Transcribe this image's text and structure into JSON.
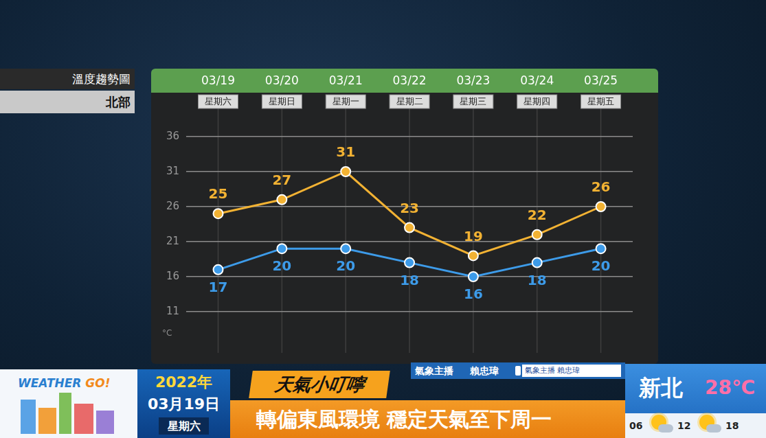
{
  "chart_data": {
    "type": "line",
    "title": "溫度趨勢圖",
    "subtitle": "北部",
    "categories": [
      "03/19",
      "03/20",
      "03/21",
      "03/22",
      "03/23",
      "03/24",
      "03/25"
    ],
    "weekdays": [
      "星期六",
      "星期日",
      "星期一",
      "星期二",
      "星期三",
      "星期四",
      "星期五"
    ],
    "series": [
      {
        "color": "#f2b233",
        "values": [
          25,
          27,
          31,
          23,
          19,
          22,
          26
        ]
      },
      {
        "color": "#3d9be9",
        "values": [
          17,
          20,
          20,
          18,
          16,
          18,
          20
        ]
      }
    ],
    "ylabel": "°C",
    "ylim": [
      11,
      36
    ],
    "yticks": [
      11,
      16,
      21,
      26,
      31,
      36
    ],
    "grid": true,
    "data_labels": true,
    "marker": "circle"
  },
  "page": {
    "logo": "WEATHER GO!",
    "date": {
      "year": "2022年",
      "day": "03月19日",
      "weekday": "星期六"
    },
    "tip_label": "天氣小叮嚀",
    "headline": "轉偏東風環境 穩定天氣至下周一",
    "anchor": {
      "role": "氣象主播",
      "name": "賴忠瑋",
      "facebook": "氣象主播 賴忠瑋"
    },
    "city": {
      "name": "新北",
      "temperature": "28℃",
      "times": [
        "06",
        "12",
        "18"
      ]
    }
  }
}
